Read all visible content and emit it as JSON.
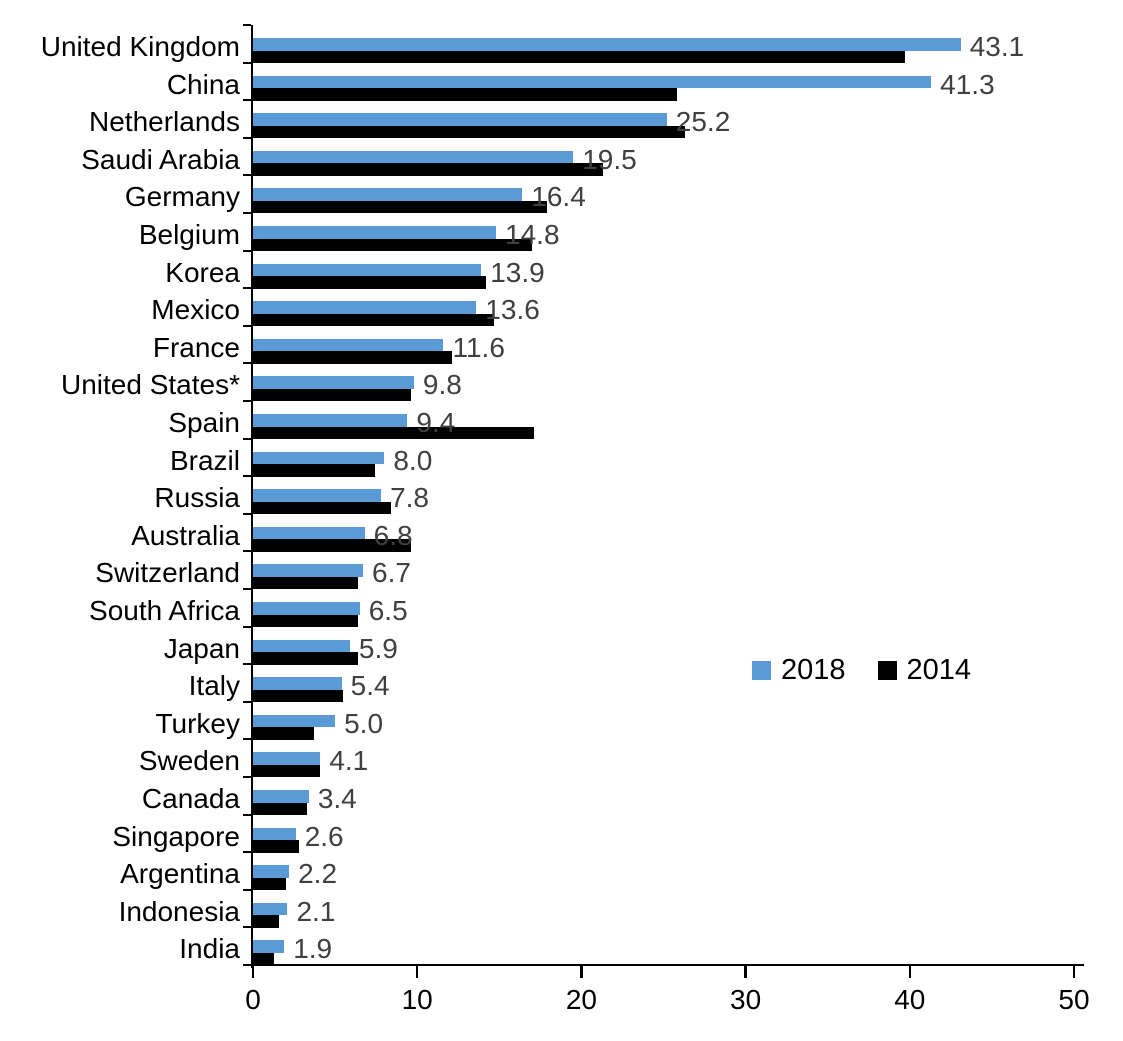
{
  "chart_data": {
    "type": "bar",
    "orientation": "horizontal",
    "title": "",
    "xlabel": "",
    "ylabel": "",
    "xlim": [
      0,
      50
    ],
    "xticks": [
      "0",
      "10",
      "20",
      "30",
      "40",
      "50"
    ],
    "grid": false,
    "legend_position": "center-right",
    "categories": [
      "United Kingdom",
      "China",
      "Netherlands",
      "Saudi Arabia",
      "Germany",
      "Belgium",
      "Korea",
      "Mexico",
      "France",
      "United States*",
      "Spain",
      "Brazil",
      "Russia",
      "Australia",
      "Switzerland",
      "South Africa",
      "Japan",
      "Italy",
      "Turkey",
      "Sweden",
      "Canada",
      "Singapore",
      "Argentina",
      "Indonesia",
      "India"
    ],
    "series": [
      {
        "name": "2018",
        "color": "#5B9BD5",
        "values": [
          43.1,
          41.3,
          25.2,
          19.5,
          16.4,
          14.8,
          13.9,
          13.6,
          11.6,
          9.8,
          9.4,
          8.0,
          7.8,
          6.8,
          6.7,
          6.5,
          5.9,
          5.4,
          5.0,
          4.1,
          3.4,
          2.6,
          2.2,
          2.1,
          1.9
        ],
        "data_labels": [
          "43.1",
          "41.3",
          "25.2",
          "19.5",
          "16.4",
          "14.8",
          "13.9",
          "13.6",
          "11.6",
          "9.8",
          "9.4",
          "8.0",
          "7.8",
          "6.8",
          "6.7",
          "6.5",
          "5.9",
          "5.4",
          "5.0",
          "4.1",
          "3.4",
          "2.6",
          "2.2",
          "2.1",
          "1.9"
        ]
      },
      {
        "name": "2014",
        "color": "#000000",
        "values": [
          39.7,
          25.8,
          26.3,
          21.3,
          17.9,
          17.0,
          14.2,
          14.7,
          12.1,
          9.6,
          17.1,
          7.4,
          8.4,
          9.6,
          6.4,
          6.4,
          6.4,
          5.5,
          3.7,
          4.1,
          3.3,
          2.8,
          2.0,
          1.6,
          1.3
        ]
      }
    ]
  },
  "colors": {
    "bar_2018": "#5B9BD5",
    "bar_2014": "#000000",
    "value_label": "#404040",
    "axis": "#000000",
    "category_label": "#000000",
    "background": "#ffffff"
  }
}
